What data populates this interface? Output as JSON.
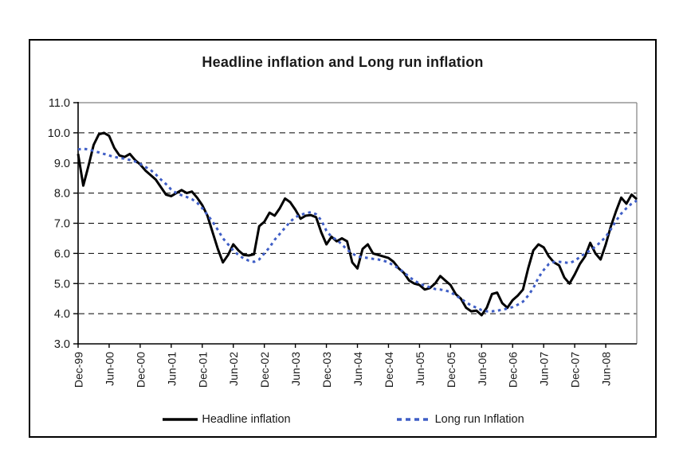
{
  "title": "Headline inflation and Long run inflation",
  "legend": {
    "items": [
      {
        "label": "Headline inflation",
        "color": "#000000",
        "style": "solid"
      },
      {
        "label": "Long run Inflation",
        "color": "#3f5ec6",
        "style": "dashed"
      }
    ]
  },
  "chart_data": {
    "type": "line",
    "title": "Headline inflation and Long run inflation",
    "grid": "horizontal dashed gridlines at each 1.0",
    "legend_position": "bottom",
    "y_axis": {
      "min": 3.0,
      "max": 11.0,
      "tick_step": 1.0,
      "tick_labels": [
        "11.0",
        "10.0",
        "9.0",
        "8.0",
        "7.0",
        "6.0",
        "5.0",
        "4.0",
        "3.0"
      ]
    },
    "x_axis": {
      "ticks_every_months": 6,
      "tick_labels": [
        "Dec-99",
        "Jun-00",
        "Dec-00",
        "Jun-01",
        "Dec-01",
        "Jun-02",
        "Dec-02",
        "Jun-03",
        "Dec-03",
        "Jun-04",
        "Dec-04",
        "Jun-05",
        "Dec-05",
        "Jun-06",
        "Dec-06",
        "Jun-07",
        "Dec-07",
        "Jun-08"
      ]
    },
    "months": [
      "Dec-99",
      "Jan-00",
      "Feb-00",
      "Mar-00",
      "Apr-00",
      "May-00",
      "Jun-00",
      "Jul-00",
      "Aug-00",
      "Sep-00",
      "Oct-00",
      "Nov-00",
      "Dec-00",
      "Jan-01",
      "Feb-01",
      "Mar-01",
      "Apr-01",
      "May-01",
      "Jun-01",
      "Jul-01",
      "Aug-01",
      "Sep-01",
      "Oct-01",
      "Nov-01",
      "Dec-01",
      "Jan-02",
      "Feb-02",
      "Mar-02",
      "Apr-02",
      "May-02",
      "Jun-02",
      "Jul-02",
      "Aug-02",
      "Sep-02",
      "Oct-02",
      "Nov-02",
      "Dec-02",
      "Jan-03",
      "Feb-03",
      "Mar-03",
      "Apr-03",
      "May-03",
      "Jun-03",
      "Jul-03",
      "Aug-03",
      "Sep-03",
      "Oct-03",
      "Nov-03",
      "Dec-03",
      "Jan-04",
      "Feb-04",
      "Mar-04",
      "Apr-04",
      "May-04",
      "Jun-04",
      "Jul-04",
      "Aug-04",
      "Sep-04",
      "Oct-04",
      "Nov-04",
      "Dec-04",
      "Jan-05",
      "Feb-05",
      "Mar-05",
      "Apr-05",
      "May-05",
      "Jun-05",
      "Jul-05",
      "Aug-05",
      "Sep-05",
      "Oct-05",
      "Nov-05",
      "Dec-05",
      "Jan-06",
      "Feb-06",
      "Mar-06",
      "Apr-06",
      "May-06",
      "Jun-06",
      "Jul-06",
      "Aug-06",
      "Sep-06",
      "Oct-06",
      "Nov-06",
      "Dec-06",
      "Jan-07",
      "Feb-07",
      "Mar-07",
      "Apr-07",
      "May-07",
      "Jun-07",
      "Jul-07",
      "Aug-07",
      "Sep-07",
      "Oct-07",
      "Nov-07",
      "Dec-07",
      "Jan-08",
      "Feb-08",
      "Mar-08",
      "Apr-08",
      "May-08",
      "Jun-08",
      "Jul-08",
      "Aug-08",
      "Sep-08",
      "Oct-08",
      "Nov-08",
      "Dec-08"
    ],
    "series": [
      {
        "name": "Headline inflation",
        "color": "#000000",
        "line_style": "solid",
        "values": [
          9.3,
          8.25,
          8.9,
          9.6,
          9.95,
          10.0,
          9.9,
          9.5,
          9.25,
          9.2,
          9.3,
          9.1,
          8.95,
          8.75,
          8.6,
          8.45,
          8.2,
          7.95,
          7.9,
          8.0,
          8.1,
          8.0,
          8.05,
          7.85,
          7.6,
          7.25,
          6.7,
          6.15,
          5.7,
          5.95,
          6.3,
          6.1,
          5.95,
          5.93,
          5.97,
          6.9,
          7.05,
          7.35,
          7.25,
          7.5,
          7.82,
          7.7,
          7.45,
          7.15,
          7.25,
          7.27,
          7.2,
          6.7,
          6.3,
          6.55,
          6.4,
          6.5,
          6.4,
          5.7,
          5.5,
          6.15,
          6.3,
          6.0,
          5.95,
          5.9,
          5.85,
          5.72,
          5.5,
          5.35,
          5.1,
          5.0,
          4.95,
          4.8,
          4.85,
          5.0,
          5.25,
          5.1,
          4.95,
          4.65,
          4.5,
          4.2,
          4.08,
          4.1,
          3.95,
          4.2,
          4.65,
          4.7,
          4.35,
          4.2,
          4.45,
          4.6,
          4.8,
          5.5,
          6.1,
          6.3,
          6.2,
          5.9,
          5.7,
          5.6,
          5.2,
          5.0,
          5.3,
          5.65,
          5.9,
          6.35,
          6.0,
          5.8,
          6.3,
          6.9,
          7.4,
          7.85,
          7.65,
          7.95,
          7.8
        ]
      },
      {
        "name": "Long run Inflation",
        "color": "#3f5ec6",
        "line_style": "dashed",
        "values": [
          9.45,
          9.47,
          9.45,
          9.4,
          9.35,
          9.3,
          9.25,
          9.2,
          9.17,
          9.14,
          9.1,
          9.05,
          8.97,
          8.87,
          8.77,
          8.62,
          8.45,
          8.3,
          8.12,
          8.0,
          7.93,
          7.87,
          7.8,
          7.68,
          7.5,
          7.28,
          7.05,
          6.78,
          6.5,
          6.3,
          6.1,
          5.95,
          5.83,
          5.76,
          5.72,
          5.8,
          6.0,
          6.2,
          6.45,
          6.65,
          6.85,
          7.05,
          7.2,
          7.28,
          7.33,
          7.37,
          7.3,
          7.1,
          6.75,
          6.55,
          6.45,
          6.3,
          6.12,
          6.0,
          5.9,
          5.87,
          5.85,
          5.82,
          5.8,
          5.76,
          5.7,
          5.6,
          5.5,
          5.37,
          5.22,
          5.1,
          5.0,
          4.93,
          4.88,
          4.82,
          4.8,
          4.77,
          4.72,
          4.6,
          4.5,
          4.38,
          4.27,
          4.2,
          4.12,
          4.08,
          4.08,
          4.1,
          4.13,
          4.17,
          4.22,
          4.3,
          4.4,
          4.6,
          4.85,
          5.2,
          5.45,
          5.65,
          5.72,
          5.72,
          5.7,
          5.68,
          5.75,
          5.88,
          6.0,
          6.1,
          6.22,
          6.38,
          6.55,
          6.8,
          7.08,
          7.32,
          7.5,
          7.65,
          7.75
        ]
      }
    ]
  }
}
